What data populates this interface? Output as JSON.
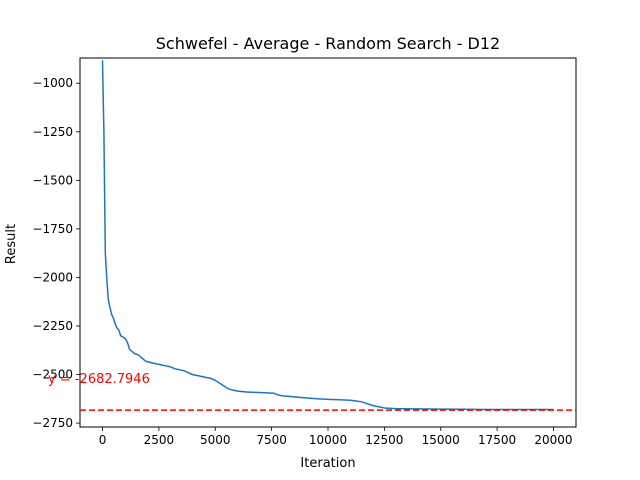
{
  "chart_data": {
    "type": "line",
    "title": "Schwefel - Average - Random Search - D12",
    "xlabel": "Iteration",
    "ylabel": "Result",
    "xlim": [
      -1000,
      21000
    ],
    "ylim": [
      -2770,
      -870
    ],
    "xticks": [
      0,
      2500,
      5000,
      7500,
      10000,
      12500,
      15000,
      17500,
      20000
    ],
    "yticks": [
      -1000,
      -1250,
      -1500,
      -1750,
      -2000,
      -2250,
      -2500,
      -2750
    ],
    "xtick_labels": [
      "0",
      "2500",
      "5000",
      "7500",
      "10000",
      "12500",
      "15000",
      "17500",
      "20000"
    ],
    "ytick_labels": [
      "−1000",
      "−1250",
      "−1500",
      "−1750",
      "−2000",
      "−2250",
      "−2500",
      "−2750"
    ],
    "grid": false,
    "series": [
      {
        "color": "#1f77b4",
        "x": [
          0,
          60,
          120,
          180,
          250,
          320,
          400,
          480,
          560,
          640,
          720,
          800,
          880,
          960,
          1040,
          1120,
          1200,
          1300,
          1400,
          1500,
          1600,
          1700,
          1800,
          1900,
          2000,
          2200,
          2400,
          2600,
          2800,
          3000,
          3200,
          3400,
          3600,
          3800,
          4000,
          4200,
          4400,
          4600,
          4800,
          5000,
          5200,
          5400,
          5600,
          6000,
          6400,
          6800,
          7200,
          7600,
          7800,
          8000,
          8500,
          9000,
          9500,
          10000,
          10500,
          11000,
          11500,
          12000,
          12500,
          13000,
          14000,
          15000,
          16000,
          17000,
          18000,
          19000,
          20000
        ],
        "y": [
          -882,
          -1250,
          -1870,
          -1990,
          -2110,
          -2150,
          -2190,
          -2210,
          -2240,
          -2260,
          -2270,
          -2300,
          -2305,
          -2310,
          -2320,
          -2340,
          -2370,
          -2380,
          -2390,
          -2395,
          -2400,
          -2410,
          -2420,
          -2430,
          -2435,
          -2440,
          -2445,
          -2450,
          -2455,
          -2460,
          -2470,
          -2475,
          -2480,
          -2490,
          -2500,
          -2505,
          -2510,
          -2515,
          -2520,
          -2530,
          -2545,
          -2560,
          -2575,
          -2585,
          -2590,
          -2592,
          -2594,
          -2596,
          -2605,
          -2610,
          -2615,
          -2620,
          -2625,
          -2628,
          -2630,
          -2632,
          -2640,
          -2660,
          -2672,
          -2675,
          -2677,
          -2678,
          -2679,
          -2680,
          -2680,
          -2680,
          -2680
        ]
      }
    ],
    "reference_line": {
      "y": -2682.7946,
      "color": "#ff0000",
      "style": "dashed",
      "label": "y = -2682.7946"
    }
  }
}
